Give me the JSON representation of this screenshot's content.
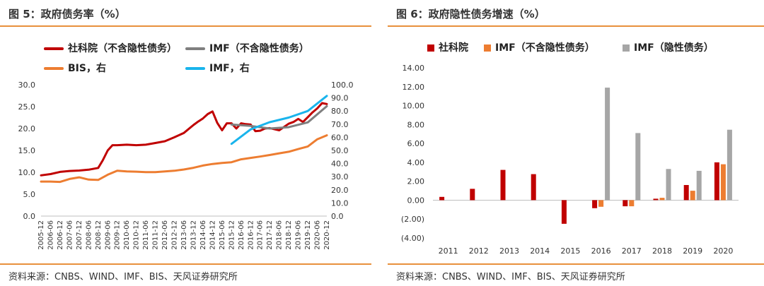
{
  "left": {
    "title": "图 5：政府债务率（%）",
    "source": "资料来源：CNBS、WIND、IMF、BIS、天风证券研究所",
    "legend": [
      {
        "label": "社科院（不含隐性债务）",
        "color": "#c00000"
      },
      {
        "label": "IMF（不含隐性债务）",
        "color": "#7f7f7f"
      },
      {
        "label": "BIS，右",
        "color": "#ed7d31"
      },
      {
        "label": "IMF，右",
        "color": "#19b4ec"
      }
    ]
  },
  "right": {
    "title": "图 6：政府隐性债务增速（%）",
    "source": "资料来源：CNBS、WIND、IMF、BIS、天风证券研究所",
    "legend": [
      {
        "label": "社科院",
        "color": "#c00000"
      },
      {
        "label": "IMF（不含隐性债务）",
        "color": "#ed7d31"
      },
      {
        "label": "IMF（隐性债务）",
        "color": "#a6a6a6"
      }
    ]
  },
  "chart_data": [
    {
      "type": "line",
      "title": "图 5：政府债务率（%）",
      "x_ticks": [
        "2005-12",
        "2006-06",
        "2006-12",
        "2007-06",
        "2007-12",
        "2008-06",
        "2008-12",
        "2009-06",
        "2009-12",
        "2010-06",
        "2010-12",
        "2011-06",
        "2011-12",
        "2012-06",
        "2012-12",
        "2013-06",
        "2013-12",
        "2014-06",
        "2014-12",
        "2015-06",
        "2015-12",
        "2016-06",
        "2016-12",
        "2017-06",
        "2017-12",
        "2018-06",
        "2018-12",
        "2019-06",
        "2019-12",
        "2020-06",
        "2020-12"
      ],
      "ylim_left": [
        0,
        30
      ],
      "y_ticks_left": [
        "0.0",
        "5.0",
        "10.0",
        "15.0",
        "20.0",
        "25.0",
        "30.0"
      ],
      "ylim_right": [
        0,
        100
      ],
      "y_ticks_right": [
        "0.0",
        "10.0",
        "20.0",
        "30.0",
        "40.0",
        "50.0",
        "60.0",
        "70.0",
        "80.0",
        "90.0",
        "100.0"
      ],
      "series": [
        {
          "name": "社科院（不含隐性债务）",
          "axis": "left",
          "color": "#c00000",
          "x": [
            "2005-12",
            "2006-06",
            "2006-12",
            "2007-06",
            "2007-12",
            "2008-06",
            "2008-12",
            "2009-03",
            "2009-06",
            "2009-09",
            "2009-12",
            "2010-06",
            "2010-12",
            "2011-06",
            "2011-12",
            "2012-06",
            "2012-12",
            "2013-06",
            "2013-12",
            "2014-03",
            "2014-06",
            "2014-09",
            "2014-12",
            "2015-03",
            "2015-06",
            "2015-09",
            "2015-12",
            "2016-03",
            "2016-06",
            "2016-09",
            "2016-12",
            "2017-03",
            "2017-06",
            "2017-09",
            "2017-12",
            "2018-06",
            "2018-12",
            "2019-03",
            "2019-06",
            "2019-09",
            "2019-12",
            "2020-03",
            "2020-06",
            "2020-09",
            "2020-12"
          ],
          "values": [
            9.3,
            9.6,
            10.1,
            10.3,
            10.4,
            10.6,
            11.0,
            12.8,
            15.0,
            16.2,
            16.2,
            16.3,
            16.2,
            16.3,
            16.7,
            17.1,
            18.0,
            19.0,
            20.8,
            21.6,
            22.3,
            23.3,
            23.9,
            21.3,
            19.6,
            21.2,
            21.2,
            20.0,
            21.2,
            21.0,
            20.9,
            19.4,
            19.5,
            20.0,
            20.1,
            19.6,
            21.1,
            21.5,
            22.2,
            21.5,
            22.6,
            23.7,
            24.6,
            25.8,
            25.6
          ]
        },
        {
          "name": "IMF（不含隐性债务）",
          "axis": "left",
          "color": "#7f7f7f",
          "x": [
            "2015-12",
            "2016-12",
            "2017-12",
            "2018-12",
            "2019-12",
            "2020-12"
          ],
          "values": [
            20.9,
            20.6,
            20.0,
            20.3,
            21.4,
            25.1
          ]
        },
        {
          "name": "BIS，右",
          "axis": "right",
          "color": "#ed7d31",
          "x": [
            "2005-12",
            "2006-06",
            "2006-12",
            "2007-06",
            "2007-12",
            "2008-06",
            "2008-12",
            "2009-06",
            "2009-12",
            "2010-06",
            "2010-12",
            "2011-06",
            "2011-12",
            "2012-06",
            "2012-12",
            "2013-06",
            "2013-12",
            "2014-06",
            "2014-12",
            "2015-06",
            "2015-12",
            "2016-06",
            "2016-12",
            "2017-06",
            "2017-12",
            "2018-06",
            "2018-12",
            "2019-06",
            "2019-12",
            "2020-06",
            "2020-12"
          ],
          "values": [
            26.3,
            26.3,
            26.0,
            28.3,
            29.5,
            27.8,
            27.5,
            31.5,
            34.5,
            34.0,
            33.8,
            33.5,
            33.5,
            34.0,
            34.5,
            35.5,
            36.8,
            38.5,
            39.7,
            40.5,
            41.0,
            43.2,
            44.3,
            45.3,
            46.5,
            47.8,
            49.0,
            51.0,
            53.0,
            58.5,
            61.5
          ]
        },
        {
          "name": "IMF，右",
          "axis": "right",
          "color": "#19b4ec",
          "x": [
            "2015-12",
            "2016-12",
            "2017-12",
            "2018-12",
            "2019-12",
            "2020-12"
          ],
          "values": [
            55.0,
            66.0,
            71.5,
            75.0,
            80.0,
            91.5
          ]
        }
      ]
    },
    {
      "type": "bar",
      "title": "图 6：政府隐性债务增速（%）",
      "categories": [
        "2011",
        "2012",
        "2013",
        "2014",
        "2015",
        "2016",
        "2017",
        "2018",
        "2019",
        "2020"
      ],
      "ylim": [
        -4,
        14
      ],
      "y_ticks": [
        "(4.00)",
        "(2.00)",
        "0.00",
        "2.00",
        "4.00",
        "6.00",
        "8.00",
        "10.00",
        "12.00",
        "14.00"
      ],
      "series": [
        {
          "name": "社科院",
          "color": "#c00000",
          "values": [
            0.35,
            1.2,
            3.2,
            2.75,
            -2.5,
            -0.85,
            -0.65,
            0.15,
            1.6,
            4.0
          ]
        },
        {
          "name": "IMF（不含隐性债务）",
          "color": "#ed7d31",
          "values": [
            null,
            null,
            null,
            null,
            null,
            -0.7,
            -0.65,
            0.25,
            1.0,
            3.8
          ]
        },
        {
          "name": "IMF（隐性债务）",
          "color": "#a6a6a6",
          "values": [
            null,
            null,
            null,
            null,
            null,
            11.9,
            7.1,
            3.3,
            3.1,
            7.45
          ]
        }
      ]
    }
  ]
}
